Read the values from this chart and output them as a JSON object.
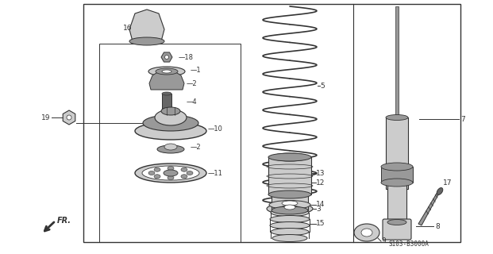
{
  "bg_color": "#ffffff",
  "line_color": "#333333",
  "gray_light": "#cccccc",
  "gray_mid": "#999999",
  "gray_dark": "#666666",
  "diagram_code": "S103-B3000A",
  "figsize": [
    6.21,
    3.2
  ],
  "dpi": 100
}
